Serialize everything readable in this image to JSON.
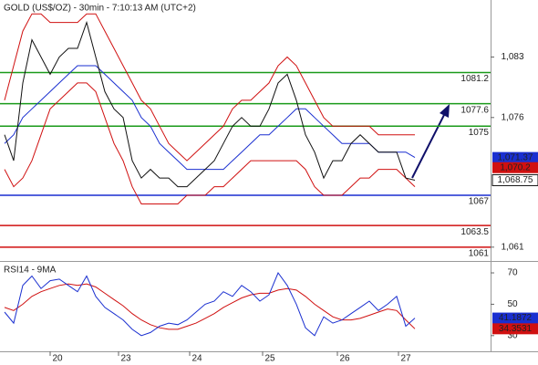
{
  "chart_data": [
    {
      "type": "line",
      "title": "GOLD (US$/OZ) - 30min - 7:10:13 AM (UTC+2)",
      "x": [
        0,
        1,
        2,
        3,
        4,
        5,
        6,
        7,
        8,
        9,
        10,
        11,
        12,
        13,
        14,
        15,
        16,
        17,
        18,
        19,
        20,
        21,
        22,
        23,
        24,
        25,
        26,
        27,
        28,
        29,
        30,
        31,
        32,
        33,
        34,
        35,
        36,
        37,
        38,
        39,
        40,
        41,
        42,
        43,
        44,
        45
      ],
      "xlim": [
        -0.5,
        53.3
      ],
      "ylim": [
        1059.4,
        1089.6
      ],
      "yticks": [
        {
          "value": 1083,
          "label": "1,083"
        },
        {
          "value": 1076,
          "label": "1,076"
        },
        {
          "value": 1061,
          "label": "1,061"
        }
      ],
      "series": [
        {
          "color": "#d01010",
          "values": [
            1078,
            1082,
            1086,
            1088,
            1088,
            1087,
            1087,
            1087,
            1087,
            1088,
            1088,
            1086,
            1084,
            1082,
            1080,
            1078,
            1077,
            1075,
            1073,
            1072,
            1071,
            1072,
            1073,
            1074,
            1075,
            1077,
            1078,
            1078,
            1079,
            1080,
            1082,
            1083,
            1082,
            1080,
            1078,
            1076,
            1075,
            1075,
            1075,
            1075,
            1075,
            1074,
            1074,
            1074,
            1074,
            1074
          ]
        },
        {
          "color": "#d01010",
          "values": [
            1070,
            1068,
            1069,
            1071,
            1074,
            1077,
            1078,
            1079,
            1080,
            1080,
            1079,
            1076,
            1073,
            1071,
            1068,
            1066,
            1066,
            1066,
            1066,
            1066,
            1067,
            1067,
            1067,
            1068,
            1068,
            1069,
            1070,
            1071,
            1071,
            1071,
            1071,
            1071,
            1071,
            1070,
            1068,
            1067,
            1067,
            1067,
            1068,
            1069,
            1069,
            1070,
            1070,
            1070,
            1069,
            1068
          ]
        },
        {
          "color": "#1a2fd0",
          "values": [
            1073,
            1074,
            1076,
            1077,
            1078,
            1079,
            1080,
            1081,
            1082,
            1082,
            1082,
            1081,
            1080,
            1079,
            1078,
            1076,
            1075,
            1073,
            1072,
            1071,
            1070,
            1070,
            1070,
            1070,
            1070,
            1071,
            1072,
            1073,
            1074,
            1074,
            1075,
            1076,
            1077,
            1077,
            1076,
            1075,
            1074,
            1073,
            1073,
            1073,
            1073,
            1072,
            1072,
            1072,
            1072,
            1071.37
          ]
        },
        {
          "color": "#111111",
          "values": [
            1074,
            1071,
            1080,
            1085,
            1083,
            1081,
            1083,
            1084,
            1084,
            1087,
            1083,
            1079,
            1077,
            1076,
            1071,
            1069,
            1070,
            1069,
            1069,
            1068,
            1068,
            1069,
            1070,
            1071,
            1073,
            1075,
            1076,
            1075,
            1075,
            1077,
            1080,
            1081,
            1078,
            1074,
            1072,
            1069,
            1071,
            1071,
            1073,
            1074,
            1073,
            1072,
            1072,
            1072,
            1069,
            1068.75
          ]
        }
      ],
      "levels": [
        {
          "value": 1081.2,
          "label": "1081.2",
          "color": "#1a9a1a"
        },
        {
          "value": 1077.6,
          "label": "1077.6",
          "color": "#1a9a1a"
        },
        {
          "value": 1075,
          "label": "1075",
          "color": "#1a9a1a"
        },
        {
          "value": 1067,
          "label": "1067",
          "color": "#1a2fd0"
        },
        {
          "value": 1063.5,
          "label": "1063.5",
          "color": "#d01010"
        },
        {
          "value": 1061,
          "label": "1061",
          "color": "#d01010"
        }
      ],
      "price_labels": [
        {
          "value": 1071.37,
          "label": "1,071.37",
          "color": "#1a2fd0"
        },
        {
          "value": 1070.2,
          "label": "1,070.2",
          "color": "#d01010"
        },
        {
          "value": 1068.75,
          "label": "1,068.75",
          "color": "#111111"
        }
      ]
    },
    {
      "type": "line",
      "title": "RSI14 - 9MA",
      "x": [
        0,
        1,
        2,
        3,
        4,
        5,
        6,
        7,
        8,
        9,
        10,
        11,
        12,
        13,
        14,
        15,
        16,
        17,
        18,
        19,
        20,
        21,
        22,
        23,
        24,
        25,
        26,
        27,
        28,
        29,
        30,
        31,
        32,
        33,
        34,
        35,
        36,
        37,
        38,
        39,
        40,
        41,
        42,
        43,
        44,
        45
      ],
      "xlim": [
        -0.5,
        53.3
      ],
      "xticks": [
        {
          "value": 5,
          "label": "20"
        },
        {
          "value": 12.5,
          "label": "23"
        },
        {
          "value": 20.3,
          "label": "24"
        },
        {
          "value": 28.3,
          "label": "25"
        },
        {
          "value": 36.5,
          "label": "26"
        },
        {
          "value": 43.2,
          "label": "27"
        }
      ],
      "ylim": [
        20,
        77
      ],
      "yticks": [
        70,
        50,
        30
      ],
      "series": [
        {
          "color": "#d01010",
          "values": [
            48,
            46,
            50,
            55,
            58,
            60,
            62,
            63,
            62,
            63,
            61,
            57,
            53,
            49,
            44,
            40,
            37,
            35,
            34,
            34,
            36,
            38,
            41,
            44,
            48,
            51,
            54,
            56,
            57,
            57,
            59,
            60,
            59,
            55,
            50,
            46,
            42,
            40,
            40,
            41,
            43,
            45,
            47,
            46,
            40,
            34.3531
          ]
        },
        {
          "color": "#1a2fd0",
          "values": [
            45,
            38,
            62,
            68,
            60,
            65,
            66,
            62,
            58,
            68,
            55,
            48,
            44,
            40,
            34,
            30,
            32,
            36,
            38,
            37,
            40,
            45,
            50,
            52,
            58,
            55,
            62,
            58,
            52,
            56,
            70,
            62,
            50,
            35,
            30,
            42,
            38,
            40,
            44,
            48,
            52,
            46,
            50,
            55,
            36,
            41.1872
          ]
        }
      ],
      "price_labels": [
        {
          "value": 41.1872,
          "label": "41.1872",
          "color": "#1a2fd0"
        },
        {
          "value": 34.3531,
          "label": "34.3531",
          "color": "#d01010"
        }
      ]
    }
  ]
}
